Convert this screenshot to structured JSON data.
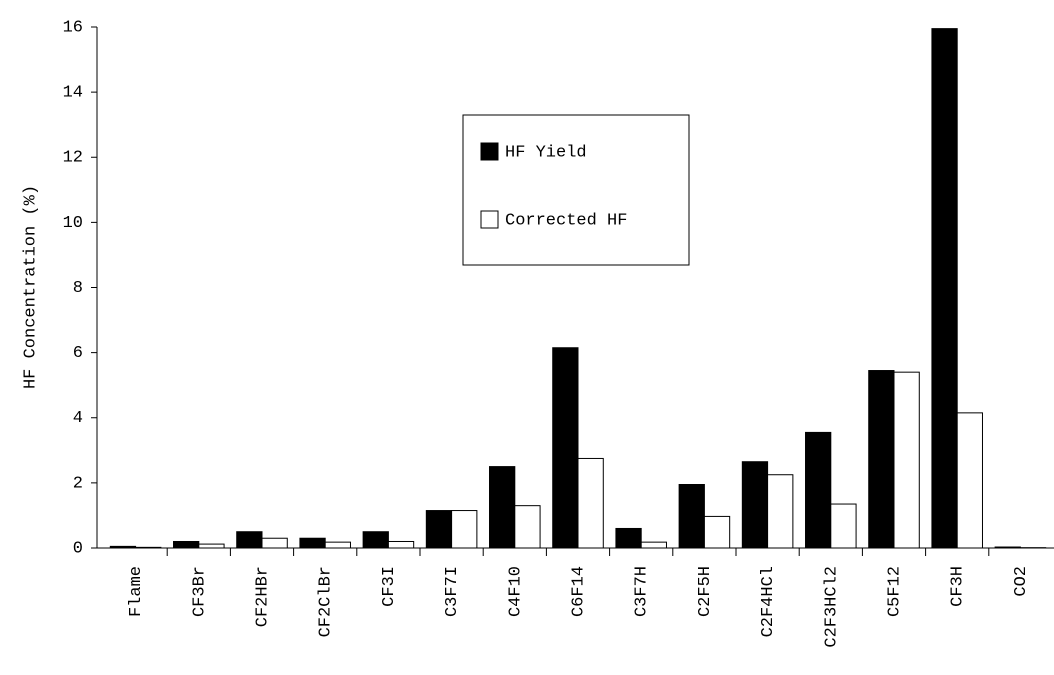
{
  "chart_data": {
    "type": "bar",
    "y_label": "HF Concentration (%)",
    "categories": [
      "Flame",
      "CF3Br",
      "CF2HBr",
      "CF2ClBr",
      "CF3I",
      "C3F7I",
      "C4F10",
      "C6F14",
      "C3F7H",
      "C2F5H",
      "C2F4HCl",
      "C2F3HCl2",
      "C5F12",
      "CF3H",
      "CO2"
    ],
    "series": [
      {
        "name": "HF Yield",
        "color": "#000000",
        "values": [
          0.05,
          0.2,
          0.5,
          0.3,
          0.5,
          1.15,
          2.5,
          6.15,
          0.6,
          1.95,
          2.65,
          3.55,
          5.45,
          15.95,
          0.03
        ]
      },
      {
        "name": "Corrected HF",
        "color": "#ffffff",
        "values": [
          0.02,
          0.12,
          0.3,
          0.18,
          0.2,
          1.15,
          1.3,
          2.75,
          0.18,
          0.97,
          2.25,
          1.35,
          5.4,
          4.15,
          0.01
        ]
      }
    ],
    "ylim": [
      0,
      16
    ],
    "yticks": [
      0,
      2,
      4,
      6,
      8,
      10,
      12,
      14,
      16
    ],
    "legend": "upper-center"
  }
}
